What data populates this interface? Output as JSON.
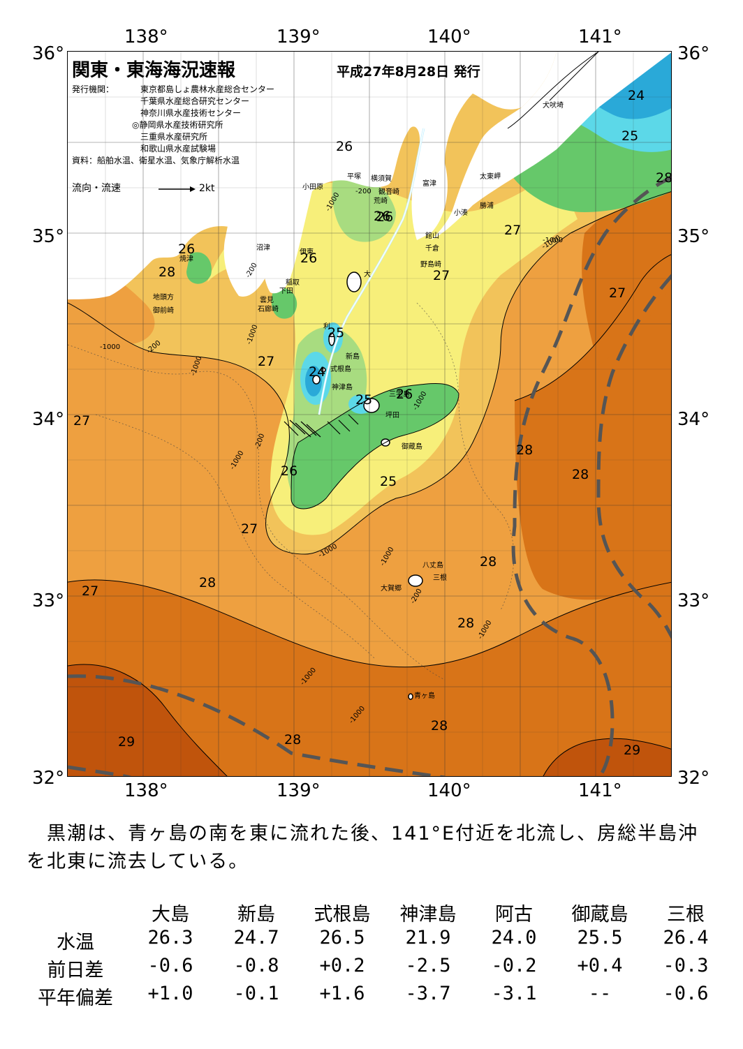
{
  "map": {
    "title": "関東・東海海況速報",
    "date": "平成27年8月28日 発行",
    "publisher_label": "発行機関：",
    "publishers": [
      "東京都島しょ農林水産総合センター",
      "千葉県水産総合研究センター",
      "神奈川県水産技術センター",
      "◎静岡県水産技術研究所",
      "三重県水産研究所",
      "和歌山県水産試験場"
    ],
    "source": "資料：船舶水温、衛星水温、気象庁解析水温",
    "flow_legend_label": "流向・流速",
    "flow_legend_value": "2kt",
    "lon_labels": [
      "138°",
      "139°",
      "140°",
      "141°"
    ],
    "lat_labels": [
      "36°",
      "35°",
      "34°",
      "33°",
      "32°"
    ],
    "isotherm_labels": [
      "26",
      "24",
      "25",
      "28",
      "27",
      "26",
      "28",
      "26",
      "26",
      "27",
      "25",
      "24",
      "25",
      "27",
      "27",
      "26",
      "25",
      "26",
      "27",
      "26",
      "28",
      "28",
      "27",
      "28",
      "27",
      "28",
      "28",
      "28",
      "28",
      "29",
      "29"
    ],
    "depth_labels": [
      "-1000",
      "-200",
      "-1000",
      "-200",
      "-1000",
      "-200",
      "-1000",
      "-1000",
      "-200",
      "-1000",
      "-1000",
      "-1000",
      "-1000",
      "-1000",
      "-200",
      "-1000",
      "-1000",
      "-1000"
    ],
    "places": [
      "犬吠埼",
      "太東岬",
      "勝浦",
      "小湊",
      "富津",
      "観音崎",
      "横須賀",
      "平塚",
      "小田原",
      "荒崎",
      "館山",
      "千倉",
      "野島崎",
      "沼津",
      "伊東",
      "焼津",
      "稲取",
      "下田",
      "雲見",
      "石廊崎",
      "地頭方",
      "御前崎",
      "大",
      "利",
      "新島",
      "式根島",
      "神津島",
      "三宅島",
      "坪田",
      "御蔵島",
      "八丈島",
      "三根",
      "大賀郷",
      "青ヶ島"
    ],
    "colors": {
      "t24": "#2aa9d8",
      "t25": "#5cd8e8",
      "t26": "#66c86a",
      "t26b": "#a8dc80",
      "t27a": "#f7ef7a",
      "t27b": "#f2c35a",
      "t28a": "#eea040",
      "t28b": "#e58a28",
      "t28c": "#d87418",
      "t29": "#c0540c",
      "t29b": "#a84208",
      "land": "#ffffff",
      "kuroshio": "#555555"
    }
  },
  "summary": "　黒潮は、青ヶ島の南を東に流れた後、141°E付近を北流し、房総半島沖を北東に流去している。",
  "table": {
    "stations": [
      "大島",
      "新島",
      "式根島",
      "神津島",
      "阿古",
      "御蔵島",
      "三根"
    ],
    "rows": [
      {
        "label": "水温",
        "values": [
          "26.3",
          "24.7",
          "26.5",
          "21.9",
          "24.0",
          "25.5",
          "26.4"
        ]
      },
      {
        "label": "前日差",
        "values": [
          "-0.6",
          "-0.8",
          "+0.2",
          "-2.5",
          "-0.2",
          "+0.4",
          "-0.3"
        ]
      },
      {
        "label": "平年偏差",
        "values": [
          "+1.0",
          "-0.1",
          "+1.6",
          "-3.7",
          "-3.1",
          "--",
          "-0.6"
        ]
      }
    ]
  }
}
